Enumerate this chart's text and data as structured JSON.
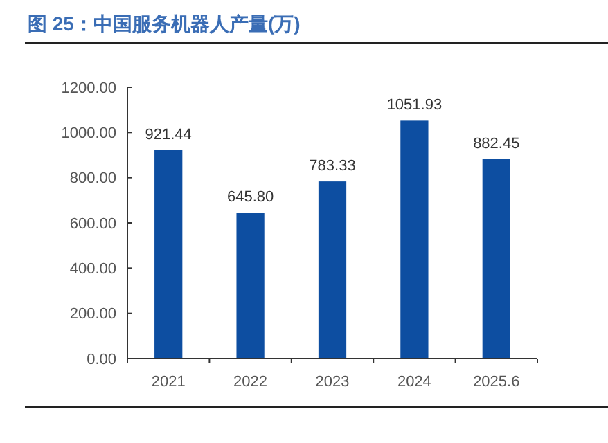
{
  "chart_data": {
    "type": "bar",
    "title": "图 25：中国服务机器人产量(万)",
    "categories": [
      "2021",
      "2022",
      "2023",
      "2024",
      "2025.6"
    ],
    "values": [
      921.44,
      645.8,
      783.33,
      1051.93,
      882.45
    ],
    "value_labels": [
      "921.44",
      "645.80",
      "783.33",
      "1051.93",
      "882.45"
    ],
    "color": "#0d4ea1",
    "ylim": [
      0,
      1200
    ],
    "yticks": [
      {
        "value": 0,
        "label": "0.00"
      },
      {
        "value": 200,
        "label": "200.00"
      },
      {
        "value": 400,
        "label": "400.00"
      },
      {
        "value": 600,
        "label": "600.00"
      },
      {
        "value": 800,
        "label": "800.00"
      },
      {
        "value": 1000,
        "label": "1000.00"
      },
      {
        "value": 1200,
        "label": "1200.00"
      }
    ],
    "grid": false
  }
}
